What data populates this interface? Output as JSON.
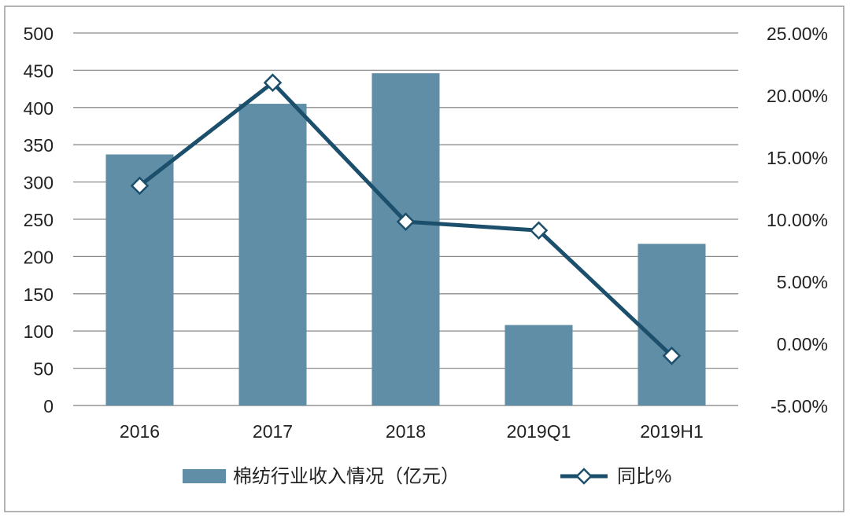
{
  "chart_data": {
    "type": "bar",
    "categories": [
      "2016",
      "2017",
      "2018",
      "2019Q1",
      "2019H1"
    ],
    "series": [
      {
        "name": "棉纺行业收入情况（亿元）",
        "type": "bar",
        "axis": "left",
        "values": [
          337,
          405,
          446,
          108,
          217
        ],
        "color": "#5f8ea6"
      },
      {
        "name": "同比%",
        "type": "line",
        "axis": "right",
        "values": [
          12.7,
          21.0,
          9.8,
          9.1,
          -1.0
        ],
        "color": "#1b4f6b"
      }
    ],
    "left_axis": {
      "ylim": [
        0,
        500
      ],
      "ticks": [
        "0",
        "50",
        "100",
        "150",
        "200",
        "250",
        "300",
        "350",
        "400",
        "450",
        "500"
      ]
    },
    "right_axis": {
      "ylim": [
        -5,
        25
      ],
      "ticks": [
        "-5.00%",
        "0.00%",
        "5.00%",
        "10.00%",
        "15.00%",
        "20.00%",
        "25.00%"
      ]
    },
    "grid": true,
    "legend_position": "bottom"
  }
}
